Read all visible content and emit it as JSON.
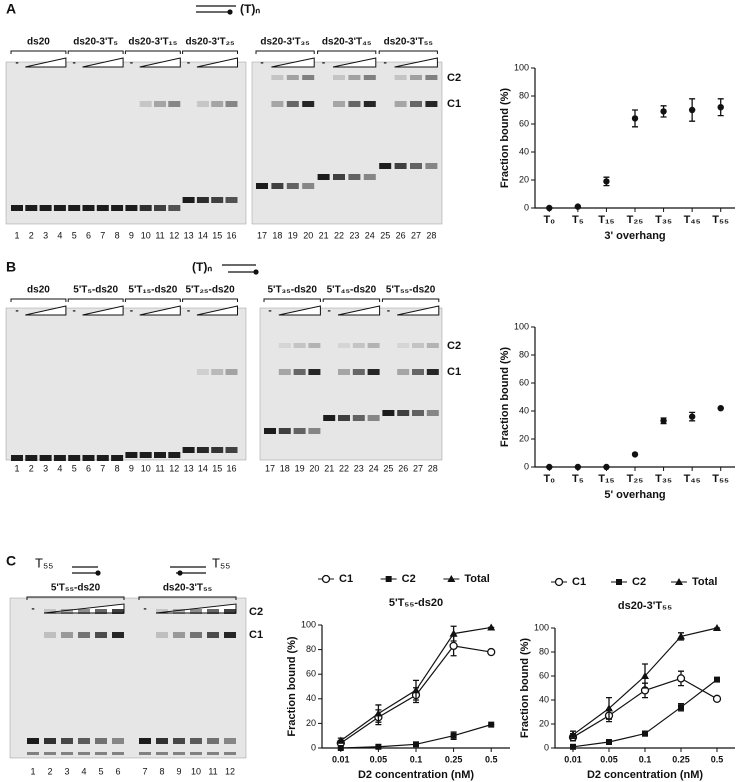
{
  "panels": [
    {
      "letter": "A",
      "schematic": "(T)ₙ",
      "groups": [
        "ds20",
        "ds20-3'T₅",
        "ds20-3'T₁₅",
        "ds20-3'T₂₅",
        "ds20-3'T₃₅",
        "ds20-3'T₄₅",
        "ds20-3'T₅₅"
      ],
      "minus": "-",
      "lanes": [
        1,
        2,
        3,
        4,
        5,
        6,
        7,
        8,
        9,
        10,
        11,
        12,
        13,
        14,
        15,
        16,
        17,
        18,
        19,
        20,
        21,
        22,
        23,
        24,
        25,
        26,
        27,
        28
      ],
      "bands": [
        "C2",
        "C1"
      ]
    },
    {
      "letter": "B",
      "schematic": "(T)ₙ",
      "groups": [
        "ds20",
        "5'T₅-ds20",
        "5'T₁₅-ds20",
        "5'T₂₅-ds20",
        "5'T₃₅-ds20",
        "5'T₄₅-ds20",
        "5'T₅₅-ds20"
      ],
      "minus": "-",
      "lanes": [
        1,
        2,
        3,
        4,
        5,
        6,
        7,
        8,
        9,
        10,
        11,
        12,
        13,
        14,
        15,
        16,
        17,
        18,
        19,
        20,
        21,
        22,
        23,
        24,
        25,
        26,
        27,
        28
      ],
      "bands": [
        "C2",
        "C1"
      ]
    },
    {
      "letter": "C",
      "schematic_labels": [
        "T₅₅",
        "T₅₅"
      ],
      "groups": [
        "5'T₅₅-ds20",
        "ds20-3'T₅₅"
      ],
      "minus": "-",
      "lanes": [
        1,
        2,
        3,
        4,
        5,
        6,
        7,
        8,
        9,
        10,
        11,
        12
      ],
      "bands": [
        "C2",
        "C1"
      ]
    }
  ],
  "chart_data": [
    {
      "type": "errorbar",
      "categories": [
        "T₀",
        "T₅",
        "T₁₅",
        "T₂₅",
        "T₃₅",
        "T₄₅",
        "T₅₅"
      ],
      "values": [
        0,
        1,
        19,
        64,
        69,
        70,
        72
      ],
      "errors": [
        0,
        0,
        3,
        6,
        4,
        8,
        6
      ],
      "color": "#111111",
      "marker": "circle",
      "x_label": "3' overhang",
      "y_label": "Fraction bound (%)",
      "ylim": [
        0,
        100
      ],
      "yticks": [
        0,
        20,
        40,
        60,
        80,
        100
      ]
    },
    {
      "type": "errorbar",
      "categories": [
        "T₀",
        "T₅",
        "T₁₅",
        "T₂₅",
        "T₃₅",
        "T₄₅",
        "T₅₅"
      ],
      "values": [
        0,
        0,
        0,
        9,
        33,
        36,
        42
      ],
      "errors": [
        0,
        0,
        0,
        0,
        2,
        3,
        0
      ],
      "color": "#111111",
      "marker": "circle",
      "x_label": "5' overhang",
      "y_label": "Fraction bound (%)",
      "ylim": [
        0,
        100
      ],
      "yticks": [
        0,
        20,
        40,
        60,
        80,
        100
      ]
    },
    {
      "type": "line",
      "title": "5'T₅₅-ds20",
      "categories": [
        "0.01",
        "0.05",
        "0.1",
        "0.25",
        "0.5"
      ],
      "series": [
        {
          "name": "C1",
          "color": "#111111",
          "marker": "circle-open",
          "values": [
            4,
            25,
            43,
            83,
            78
          ],
          "errors": [
            2,
            6,
            6,
            8,
            0
          ]
        },
        {
          "name": "C2",
          "color": "#111111",
          "marker": "square",
          "values": [
            0,
            1,
            3,
            10,
            19
          ],
          "errors": [
            0,
            0,
            0,
            3,
            0
          ]
        },
        {
          "name": "Total",
          "color": "#111111",
          "marker": "triangle",
          "values": [
            6,
            28,
            47,
            93,
            98
          ],
          "errors": [
            2,
            7,
            8,
            6,
            0
          ]
        }
      ],
      "x_label": "D2 concentration (nM)",
      "y_label": "Fraction bound (%)",
      "ylim": [
        0,
        100
      ],
      "yticks": [
        0,
        20,
        40,
        60,
        80,
        100
      ]
    },
    {
      "type": "line",
      "title": "ds20-3'T₅₅",
      "categories": [
        "0.01",
        "0.05",
        "0.1",
        "0.25",
        "0.5"
      ],
      "series": [
        {
          "name": "C1",
          "color": "#111111",
          "marker": "circle-open",
          "values": [
            9,
            27,
            48,
            58,
            41
          ],
          "errors": [
            3,
            5,
            6,
            6,
            0
          ]
        },
        {
          "name": "C2",
          "color": "#111111",
          "marker": "square",
          "values": [
            1,
            5,
            12,
            34,
            57
          ],
          "errors": [
            0,
            0,
            2,
            3,
            0
          ]
        },
        {
          "name": "Total",
          "color": "#111111",
          "marker": "triangle",
          "values": [
            11,
            33,
            60,
            93,
            100
          ],
          "errors": [
            3,
            9,
            10,
            3,
            0
          ]
        }
      ],
      "x_label": "D2 concentration (nM)",
      "y_label": "Fraction bound (%)",
      "ylim": [
        0,
        100
      ],
      "yticks": [
        0,
        20,
        40,
        60,
        80,
        100
      ]
    }
  ]
}
